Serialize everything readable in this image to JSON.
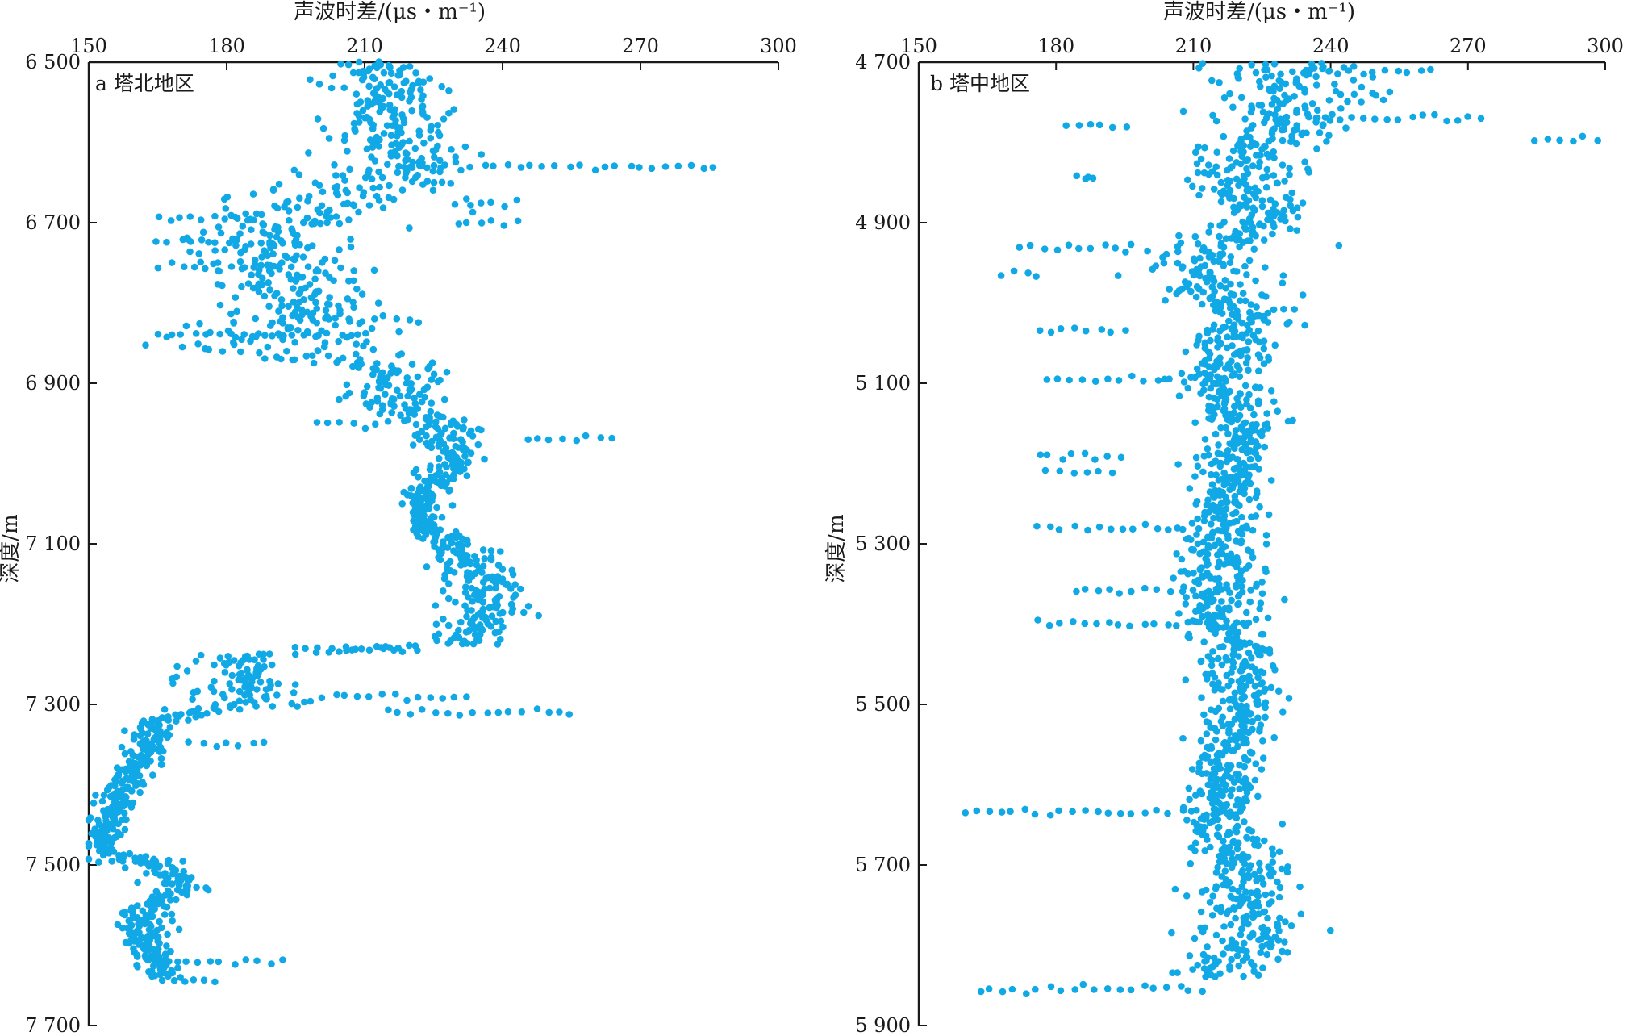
{
  "chart_data": [
    {
      "type": "scatter",
      "panel_label": "a 塔北地区",
      "xlabel": "声波时差/(μs・m⁻¹)",
      "ylabel": "深度/m",
      "xlim": [
        150,
        300
      ],
      "ylim": [
        6500,
        7700
      ],
      "y_inverted": true,
      "x_axis_position": "top",
      "xticks": [
        150,
        180,
        210,
        240,
        270,
        300
      ],
      "xtick_labels": [
        "150",
        "180",
        "210",
        "240",
        "270",
        "300"
      ],
      "yticks": [
        6500,
        6700,
        6900,
        7100,
        7300,
        7500,
        7700
      ],
      "ytick_labels": [
        "6 500",
        "6 700",
        "6 900",
        "7 100",
        "7 300",
        "7 500",
        "7 700"
      ],
      "color": "#11a8e6",
      "profile": [
        {
          "depth": 6500,
          "ac": 212,
          "spread": 7
        },
        {
          "depth": 6530,
          "ac": 214,
          "spread": 8
        },
        {
          "depth": 6560,
          "ac": 215,
          "spread": 8
        },
        {
          "depth": 6590,
          "ac": 216,
          "spread": 9
        },
        {
          "depth": 6620,
          "ac": 220,
          "spread": 10
        },
        {
          "depth": 6650,
          "ac": 213,
          "spread": 12
        },
        {
          "depth": 6680,
          "ac": 200,
          "spread": 16
        },
        {
          "depth": 6710,
          "ac": 192,
          "spread": 14
        },
        {
          "depth": 6740,
          "ac": 190,
          "spread": 14
        },
        {
          "depth": 6770,
          "ac": 193,
          "spread": 13
        },
        {
          "depth": 6800,
          "ac": 196,
          "spread": 12
        },
        {
          "depth": 6830,
          "ac": 192,
          "spread": 14
        },
        {
          "depth": 6860,
          "ac": 190,
          "spread": 16
        },
        {
          "depth": 6880,
          "ac": 215,
          "spread": 7
        },
        {
          "depth": 6920,
          "ac": 218,
          "spread": 7
        },
        {
          "depth": 6960,
          "ac": 228,
          "spread": 5
        },
        {
          "depth": 7000,
          "ac": 230,
          "spread": 4
        },
        {
          "depth": 7040,
          "ac": 222,
          "spread": 3
        },
        {
          "depth": 7080,
          "ac": 223,
          "spread": 3
        },
        {
          "depth": 7110,
          "ac": 232,
          "spread": 5
        },
        {
          "depth": 7150,
          "ac": 236,
          "spread": 6
        },
        {
          "depth": 7190,
          "ac": 236,
          "spread": 6
        },
        {
          "depth": 7225,
          "ac": 232,
          "spread": 5
        },
        {
          "depth": 7240,
          "ac": 182,
          "spread": 6
        },
        {
          "depth": 7270,
          "ac": 183,
          "spread": 8
        },
        {
          "depth": 7300,
          "ac": 186,
          "spread": 9
        },
        {
          "depth": 7320,
          "ac": 165,
          "spread": 3
        },
        {
          "depth": 7360,
          "ac": 162,
          "spread": 3
        },
        {
          "depth": 7400,
          "ac": 158,
          "spread": 3
        },
        {
          "depth": 7440,
          "ac": 155,
          "spread": 3
        },
        {
          "depth": 7480,
          "ac": 152,
          "spread": 2
        },
        {
          "depth": 7500,
          "ac": 165,
          "spread": 4
        },
        {
          "depth": 7530,
          "ac": 170,
          "spread": 4
        },
        {
          "depth": 7560,
          "ac": 160,
          "spread": 4
        },
        {
          "depth": 7600,
          "ac": 162,
          "spread": 4
        },
        {
          "depth": 7640,
          "ac": 166,
          "spread": 3
        }
      ],
      "streaks": [
        {
          "depth": 6630,
          "from": 220,
          "to": 286
        },
        {
          "depth": 6675,
          "from": 230,
          "to": 243
        },
        {
          "depth": 6700,
          "from": 230,
          "to": 243
        },
        {
          "depth": 6695,
          "from": 165,
          "to": 185
        },
        {
          "depth": 6725,
          "from": 165,
          "to": 195
        },
        {
          "depth": 6755,
          "from": 165,
          "to": 200
        },
        {
          "depth": 6840,
          "from": 165,
          "to": 210
        },
        {
          "depth": 6820,
          "from": 196,
          "to": 222
        },
        {
          "depth": 6950,
          "from": 200,
          "to": 215
        },
        {
          "depth": 6970,
          "from": 245,
          "to": 264
        },
        {
          "depth": 7230,
          "from": 195,
          "to": 221
        },
        {
          "depth": 7290,
          "from": 201,
          "to": 232
        },
        {
          "depth": 7310,
          "from": 215,
          "to": 255
        },
        {
          "depth": 7350,
          "from": 172,
          "to": 188
        },
        {
          "depth": 7495,
          "from": 150,
          "to": 170
        },
        {
          "depth": 7620,
          "from": 168,
          "to": 192
        },
        {
          "depth": 7645,
          "from": 166,
          "to": 178
        }
      ]
    },
    {
      "type": "scatter",
      "panel_label": "b 塔中地区",
      "xlabel": "声波时差/(μs・m⁻¹)",
      "ylabel": "深度/m",
      "xlim": [
        150,
        300
      ],
      "ylim": [
        4700,
        5900
      ],
      "y_inverted": true,
      "x_axis_position": "top",
      "xticks": [
        150,
        180,
        210,
        240,
        270,
        300
      ],
      "xtick_labels": [
        "150",
        "180",
        "210",
        "240",
        "270",
        "300"
      ],
      "yticks": [
        4700,
        4900,
        5100,
        5300,
        5500,
        5700,
        5900
      ],
      "ytick_labels": [
        "4 700",
        "4 900",
        "5 100",
        "5 300",
        "5 500",
        "5 700",
        "5 900"
      ],
      "color": "#11a8e6",
      "profile": [
        {
          "depth": 4700,
          "ac": 230,
          "spread": 10
        },
        {
          "depth": 4740,
          "ac": 232,
          "spread": 11
        },
        {
          "depth": 4780,
          "ac": 228,
          "spread": 10
        },
        {
          "depth": 4820,
          "ac": 222,
          "spread": 9
        },
        {
          "depth": 4860,
          "ac": 222,
          "spread": 8
        },
        {
          "depth": 4900,
          "ac": 225,
          "spread": 7
        },
        {
          "depth": 4940,
          "ac": 213,
          "spread": 10
        },
        {
          "depth": 4980,
          "ac": 215,
          "spread": 10
        },
        {
          "depth": 5020,
          "ac": 222,
          "spread": 7
        },
        {
          "depth": 5060,
          "ac": 218,
          "spread": 7
        },
        {
          "depth": 5100,
          "ac": 217,
          "spread": 6
        },
        {
          "depth": 5150,
          "ac": 221,
          "spread": 5
        },
        {
          "depth": 5200,
          "ac": 219,
          "spread": 5
        },
        {
          "depth": 5250,
          "ac": 217,
          "spread": 5
        },
        {
          "depth": 5300,
          "ac": 216,
          "spread": 6
        },
        {
          "depth": 5350,
          "ac": 216,
          "spread": 7
        },
        {
          "depth": 5400,
          "ac": 217,
          "spread": 6
        },
        {
          "depth": 5450,
          "ac": 220,
          "spread": 5
        },
        {
          "depth": 5500,
          "ac": 221,
          "spread": 5
        },
        {
          "depth": 5550,
          "ac": 218,
          "spread": 5
        },
        {
          "depth": 5600,
          "ac": 217,
          "spread": 5
        },
        {
          "depth": 5650,
          "ac": 215,
          "spread": 6
        },
        {
          "depth": 5700,
          "ac": 222,
          "spread": 7
        },
        {
          "depth": 5750,
          "ac": 222,
          "spread": 7
        },
        {
          "depth": 5800,
          "ac": 222,
          "spread": 7
        },
        {
          "depth": 5840,
          "ac": 215,
          "spread": 6
        }
      ],
      "streaks": [
        {
          "depth": 4712,
          "from": 232,
          "to": 262
        },
        {
          "depth": 4770,
          "from": 235,
          "to": 273
        },
        {
          "depth": 4780,
          "from": 182,
          "to": 195
        },
        {
          "depth": 4795,
          "from": 285,
          "to": 298
        },
        {
          "depth": 4845,
          "from": 185,
          "to": 188
        },
        {
          "depth": 4930,
          "from": 172,
          "to": 196
        },
        {
          "depth": 4965,
          "from": 168,
          "to": 176
        },
        {
          "depth": 5035,
          "from": 176,
          "to": 195
        },
        {
          "depth": 5095,
          "from": 178,
          "to": 213
        },
        {
          "depth": 5190,
          "from": 176,
          "to": 194
        },
        {
          "depth": 5210,
          "from": 178,
          "to": 192
        },
        {
          "depth": 5280,
          "from": 176,
          "to": 207
        },
        {
          "depth": 5360,
          "from": 184,
          "to": 215
        },
        {
          "depth": 5400,
          "from": 176,
          "to": 222
        },
        {
          "depth": 5635,
          "from": 160,
          "to": 218
        },
        {
          "depth": 5855,
          "from": 163,
          "to": 212
        }
      ]
    }
  ]
}
